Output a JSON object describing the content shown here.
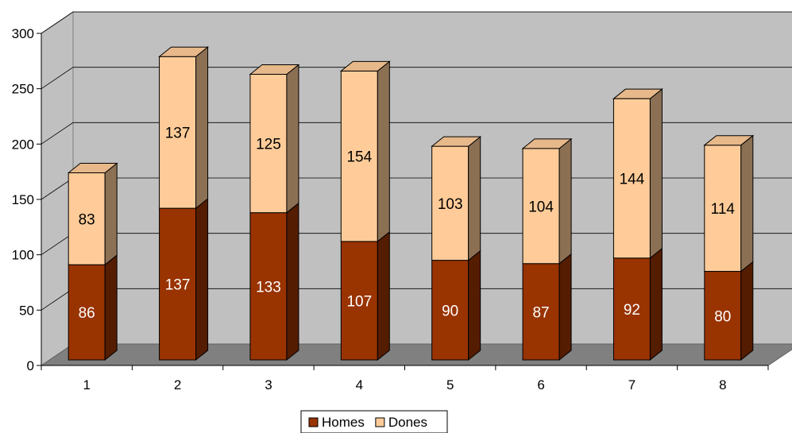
{
  "chart_data": {
    "type": "bar",
    "stacked": true,
    "style": "3d",
    "categories": [
      "1",
      "2",
      "3",
      "4",
      "5",
      "6",
      "7",
      "8"
    ],
    "series": [
      {
        "name": "Homes",
        "values": [
          86,
          137,
          133,
          107,
          90,
          87,
          92,
          80
        ],
        "color": "#993300"
      },
      {
        "name": "Dones",
        "values": [
          83,
          137,
          125,
          154,
          103,
          104,
          144,
          114
        ],
        "color": "#ffcc99"
      }
    ],
    "ylim": [
      0,
      300
    ],
    "yticks": [
      "0",
      "50",
      "100",
      "150",
      "200",
      "250",
      "300"
    ],
    "grid": true,
    "legend": "bottom",
    "colors": {
      "wall": "#c0c0c0",
      "floor": "#808080",
      "grid": "#000000"
    }
  }
}
